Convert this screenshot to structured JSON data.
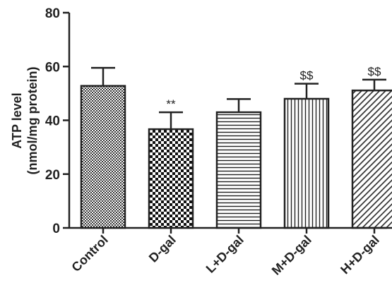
{
  "chart_data": {
    "type": "bar",
    "categories": [
      "Control",
      "D-gal",
      "L+D-gal",
      "M+D-gal",
      "H+D-gal"
    ],
    "values": [
      52.8,
      36.7,
      43.0,
      48.0,
      51.1
    ],
    "errors": [
      6.7,
      6.3,
      4.9,
      5.6,
      4.0
    ],
    "significance": [
      "",
      "**",
      "",
      "$$",
      "$$"
    ],
    "patterns": [
      "checker-fine",
      "checker-coarse",
      "horizontal-lines",
      "vertical-lines",
      "diagonal-lines"
    ],
    "ylabel_line1": "ATP level",
    "ylabel_line2": "(nmol/mg protein)",
    "ylim": [
      0,
      80
    ],
    "yticks": [
      0,
      20,
      40,
      60,
      80
    ],
    "grid": false,
    "colors": {
      "bar_fill": "#ffffff",
      "bar_stroke": "#222222",
      "axis": "#222222"
    }
  }
}
